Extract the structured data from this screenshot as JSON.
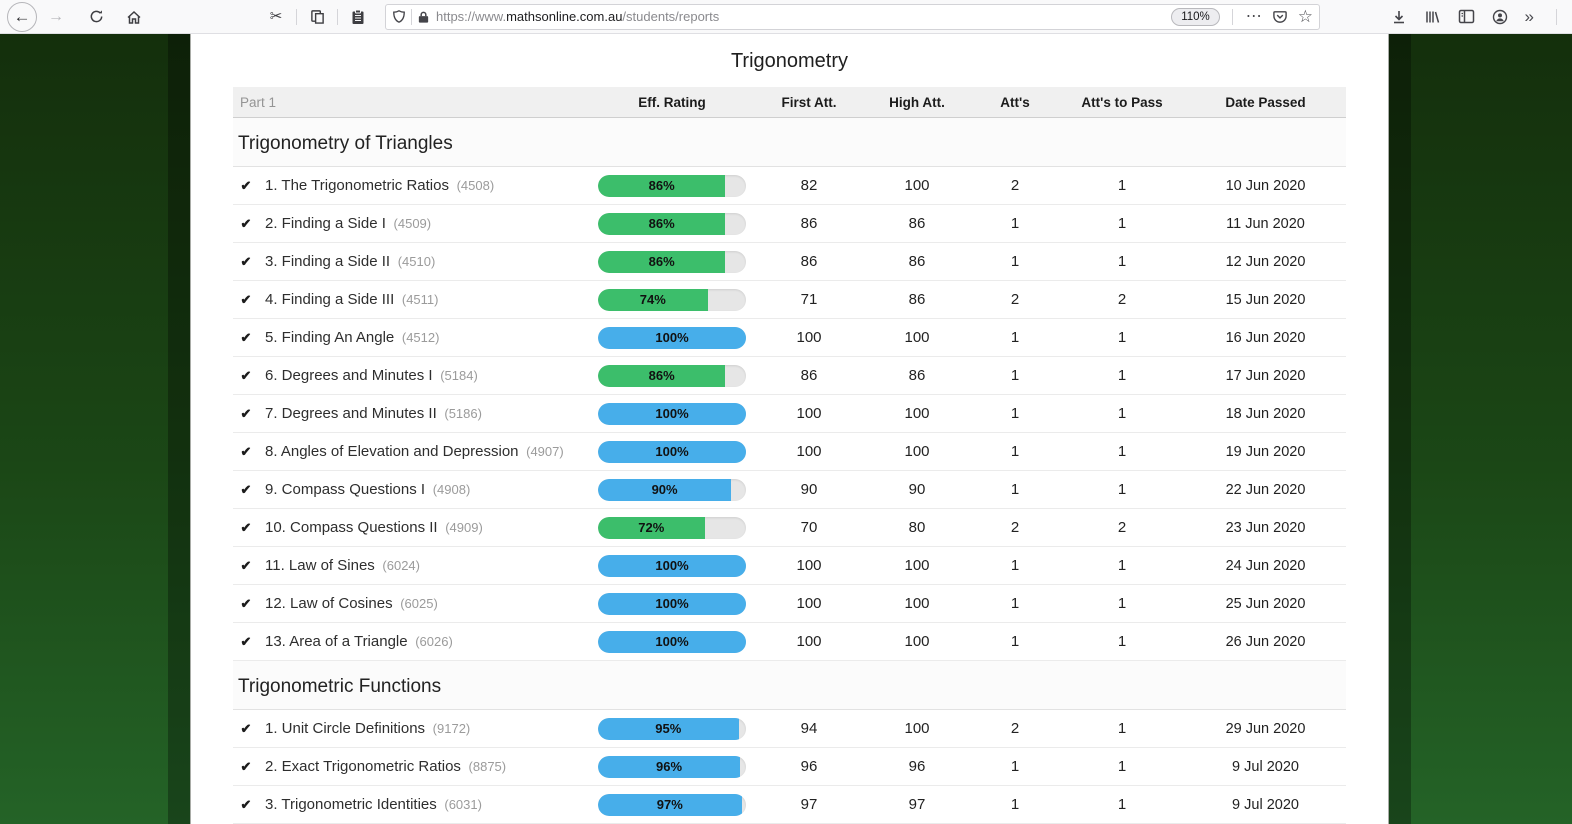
{
  "browser": {
    "icons": {
      "back": "←",
      "forward": "→",
      "reload": "⟳",
      "home": "home-glyph",
      "cut": "✂",
      "copy": "copy-glyph",
      "paste": "clipboard-glyph",
      "shield": "shield-glyph",
      "lock": "lock-glyph",
      "page_actions": "⋯",
      "pocket": "pocket-glyph",
      "bookmark_star": "☆",
      "downloads": "download-glyph",
      "library": "library-glyph",
      "sidebar": "sidebar-glyph",
      "account": "account-glyph",
      "overflow": "»"
    },
    "url": {
      "scheme": "https://www.",
      "domain": "mathsonline.com.au",
      "path": "/students/reports"
    },
    "zoom_badge": "110%"
  },
  "colors": {
    "bar_green": "#3cbe6b",
    "bar_blue": "#47aeea",
    "bar_track": "#e6e6e6",
    "backdrop_green_top": "#142f0c",
    "backdrop_green_bottom": "#246327"
  },
  "page": {
    "title": "Trigonometry",
    "table": {
      "part_label": "Part 1",
      "columns": [
        "Eff. Rating",
        "First Att.",
        "High Att.",
        "Att's",
        "Att's to Pass",
        "Date Passed"
      ],
      "sections": [
        {
          "heading": "Trigonometry of Triangles",
          "lessons": [
            {
              "name": "1. The Trigonometric Ratios",
              "id": "(4508)",
              "rating": 86,
              "tone": "green",
              "first": 82,
              "high": 100,
              "atts": 2,
              "atts_to_pass": 1,
              "date": "10 Jun 2020"
            },
            {
              "name": "2. Finding a Side I",
              "id": "(4509)",
              "rating": 86,
              "tone": "green",
              "first": 86,
              "high": 86,
              "atts": 1,
              "atts_to_pass": 1,
              "date": "11 Jun 2020"
            },
            {
              "name": "3. Finding a Side II",
              "id": "(4510)",
              "rating": 86,
              "tone": "green",
              "first": 86,
              "high": 86,
              "atts": 1,
              "atts_to_pass": 1,
              "date": "12 Jun 2020"
            },
            {
              "name": "4. Finding a Side III",
              "id": "(4511)",
              "rating": 74,
              "tone": "green",
              "first": 71,
              "high": 86,
              "atts": 2,
              "atts_to_pass": 2,
              "date": "15 Jun 2020"
            },
            {
              "name": "5. Finding An Angle",
              "id": "(4512)",
              "rating": 100,
              "tone": "blue",
              "first": 100,
              "high": 100,
              "atts": 1,
              "atts_to_pass": 1,
              "date": "16 Jun 2020"
            },
            {
              "name": "6. Degrees and Minutes I",
              "id": "(5184)",
              "rating": 86,
              "tone": "green",
              "first": 86,
              "high": 86,
              "atts": 1,
              "atts_to_pass": 1,
              "date": "17 Jun 2020"
            },
            {
              "name": "7. Degrees and Minutes II",
              "id": "(5186)",
              "rating": 100,
              "tone": "blue",
              "first": 100,
              "high": 100,
              "atts": 1,
              "atts_to_pass": 1,
              "date": "18 Jun 2020"
            },
            {
              "name": "8. Angles of Elevation and Depression",
              "id": "(4907)",
              "rating": 100,
              "tone": "blue",
              "first": 100,
              "high": 100,
              "atts": 1,
              "atts_to_pass": 1,
              "date": "19 Jun 2020"
            },
            {
              "name": "9. Compass Questions I",
              "id": "(4908)",
              "rating": 90,
              "tone": "blue",
              "first": 90,
              "high": 90,
              "atts": 1,
              "atts_to_pass": 1,
              "date": "22 Jun 2020"
            },
            {
              "name": "10. Compass Questions II",
              "id": "(4909)",
              "rating": 72,
              "tone": "green",
              "first": 70,
              "high": 80,
              "atts": 2,
              "atts_to_pass": 2,
              "date": "23 Jun 2020"
            },
            {
              "name": "11. Law of Sines",
              "id": "(6024)",
              "rating": 100,
              "tone": "blue",
              "first": 100,
              "high": 100,
              "atts": 1,
              "atts_to_pass": 1,
              "date": "24 Jun 2020"
            },
            {
              "name": "12. Law of Cosines",
              "id": "(6025)",
              "rating": 100,
              "tone": "blue",
              "first": 100,
              "high": 100,
              "atts": 1,
              "atts_to_pass": 1,
              "date": "25 Jun 2020"
            },
            {
              "name": "13. Area of a Triangle",
              "id": "(6026)",
              "rating": 100,
              "tone": "blue",
              "first": 100,
              "high": 100,
              "atts": 1,
              "atts_to_pass": 1,
              "date": "26 Jun 2020"
            }
          ]
        },
        {
          "heading": "Trigonometric Functions",
          "lessons": [
            {
              "name": "1. Unit Circle Definitions",
              "id": "(9172)",
              "rating": 95,
              "tone": "blue",
              "first": 94,
              "high": 100,
              "atts": 2,
              "atts_to_pass": 1,
              "date": "29 Jun 2020"
            },
            {
              "name": "2. Exact Trigonometric Ratios",
              "id": "(8875)",
              "rating": 96,
              "tone": "blue",
              "first": 96,
              "high": 96,
              "atts": 1,
              "atts_to_pass": 1,
              "date": "9 Jul 2020"
            },
            {
              "name": "3. Trigonometric Identities",
              "id": "(6031)",
              "rating": 97,
              "tone": "blue",
              "first": 97,
              "high": 97,
              "atts": 1,
              "atts_to_pass": 1,
              "date": "9 Jul 2020"
            }
          ]
        }
      ]
    }
  }
}
